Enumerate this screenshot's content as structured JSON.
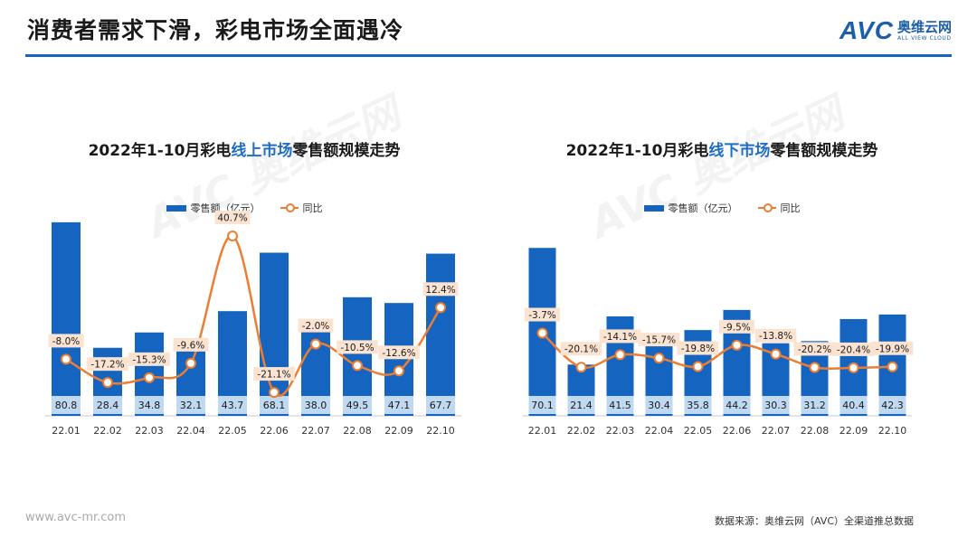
{
  "header": {
    "title": "消费者需求下滑，彩电市场全面遇冷",
    "brand_logo": "AVC",
    "brand_cn": "奥维云网",
    "brand_en": "ALL VIEW CLOUD"
  },
  "colors": {
    "bar": "#1565c0",
    "bar_label_bg": "#bfd9f2",
    "line": "#ed7d31",
    "label_bg": "#fbe3d2",
    "accent": "#1f6ec4"
  },
  "legend": {
    "bar_label": "零售额（亿元）",
    "line_label": "同比"
  },
  "chart_data": [
    {
      "type": "bar",
      "title_parts": [
        "2022年1-10月彩电",
        "线上市场",
        "零售额规模走势"
      ],
      "categories": [
        "22.01",
        "22.02",
        "22.03",
        "22.04",
        "22.05",
        "22.06",
        "22.07",
        "22.08",
        "22.09",
        "22.10"
      ],
      "series": [
        {
          "name": "零售额（亿元）",
          "type": "bar",
          "values": [
            80.8,
            28.4,
            34.8,
            32.1,
            43.7,
            68.1,
            38.0,
            49.5,
            47.1,
            67.7
          ]
        },
        {
          "name": "同比",
          "type": "line",
          "values": [
            -8.0,
            -17.2,
            -15.3,
            -9.6,
            40.7,
            -21.1,
            -2.0,
            -10.5,
            -12.6,
            12.4
          ]
        }
      ],
      "bar_labels": [
        "80.8",
        "28.4",
        "34.8",
        "32.1",
        "43.7",
        "68.1",
        "38.0",
        "49.5",
        "47.1",
        "67.7"
      ],
      "line_labels": [
        "-8.0%",
        "-17.2%",
        "-15.3%",
        "-9.6%",
        "40.7%",
        "-21.1%",
        "-2.0%",
        "-10.5%",
        "-12.6%",
        "12.4%"
      ]
    },
    {
      "type": "bar",
      "title_parts": [
        "2022年1-10月彩电",
        "线下市场",
        "零售额规模走势"
      ],
      "categories": [
        "22.01",
        "22.02",
        "22.03",
        "22.04",
        "22.05",
        "22.06",
        "22.07",
        "22.08",
        "22.09",
        "22.10"
      ],
      "series": [
        {
          "name": "零售额（亿元）",
          "type": "bar",
          "values": [
            70.1,
            21.4,
            41.5,
            30.4,
            35.8,
            44.2,
            30.3,
            31.2,
            40.4,
            42.3
          ]
        },
        {
          "name": "同比",
          "type": "line",
          "values": [
            -3.7,
            -20.1,
            -14.1,
            -15.7,
            -19.8,
            -9.5,
            -13.8,
            -20.2,
            -20.4,
            -19.9
          ]
        }
      ],
      "bar_labels": [
        "70.1",
        "21.4",
        "41.5",
        "30.4",
        "35.8",
        "44.2",
        "30.3",
        "31.2",
        "40.4",
        "42.3"
      ],
      "line_labels": [
        "-3.7%",
        "-20.1%",
        "-14.1%",
        "-15.7%",
        "-19.8%",
        "-9.5%",
        "-13.8%",
        "-20.2%",
        "-20.4%",
        "-19.9%"
      ]
    }
  ],
  "footer": {
    "url": "www.avc-mr.com",
    "source": "数据来源：奥维云网（AVC）全渠道推总数据"
  },
  "watermark_text": "AVC 奥维云网"
}
